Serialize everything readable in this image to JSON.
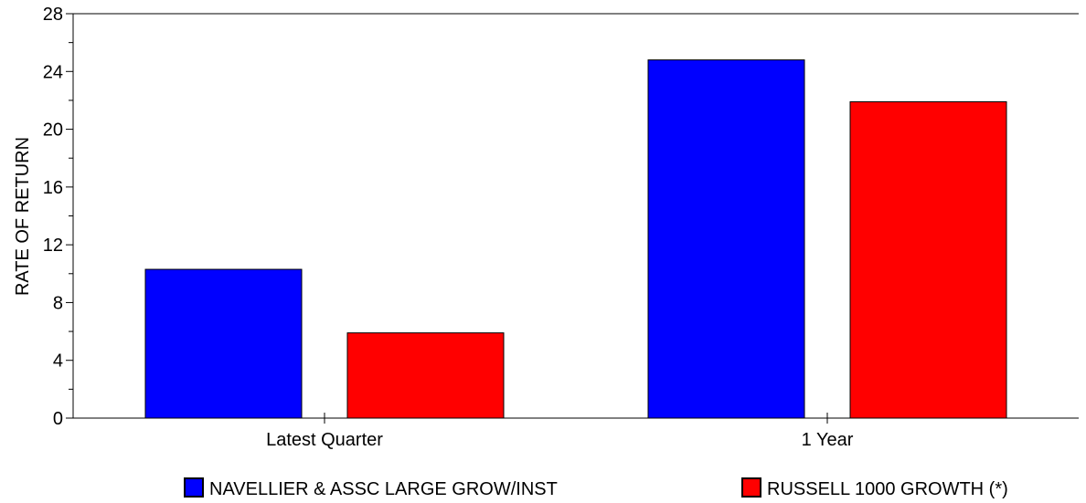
{
  "chart_data": {
    "type": "bar",
    "ylabel": "RATE OF RETURN",
    "ylim": [
      0,
      28
    ],
    "yticks": [
      0,
      4,
      8,
      12,
      16,
      20,
      24,
      28
    ],
    "categories": [
      "Latest Quarter",
      "1 Year"
    ],
    "series": [
      {
        "name": "NAVELLIER & ASSC LARGE GROW/INST",
        "color": "#0000ff",
        "values": [
          10.3,
          24.8
        ]
      },
      {
        "name": "RUSSELL 1000 GROWTH (*)",
        "color": "#ff0000",
        "values": [
          5.9,
          21.9
        ]
      }
    ],
    "legend_position": "bottom",
    "grid": false
  }
}
